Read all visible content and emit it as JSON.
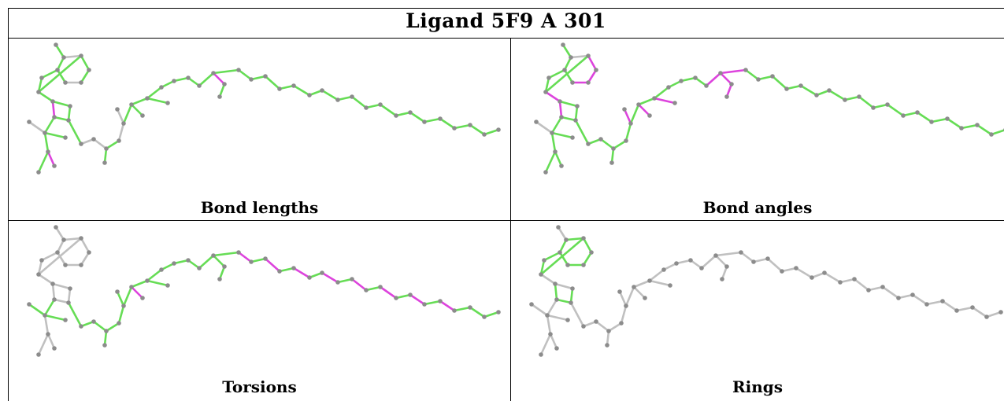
{
  "title": "Ligand 5F9 A 301",
  "colors": {
    "good": "#66dd55",
    "outlier": "#dd44dd",
    "neutral": "#c0c0c0",
    "atom": "#8c8c8c"
  },
  "panels": [
    {
      "caption": "Bond lengths",
      "default_color": "green",
      "offset": [
        0,
        0
      ],
      "overrides": [
        [
          14,
          16,
          "gray"
        ],
        [
          13,
          14,
          "gray"
        ],
        [
          19,
          20,
          "gray"
        ],
        [
          20,
          21,
          "gray"
        ],
        [
          20,
          23,
          "gray"
        ],
        [
          23,
          24,
          "gray"
        ],
        [
          24,
          25,
          "gray"
        ],
        [
          25,
          26,
          "gray"
        ],
        [
          1,
          2,
          "gray"
        ],
        [
          4,
          5,
          "gray"
        ],
        [
          9,
          10,
          "pink"
        ],
        [
          16,
          17,
          "pink"
        ],
        [
          34,
          35,
          "pink"
        ]
      ]
    },
    {
      "caption": "Bond angles",
      "default_color": "green",
      "offset": [
        6,
        0
      ],
      "overrides": [
        [
          3,
          4,
          "pink"
        ],
        [
          4,
          5,
          "pink"
        ],
        [
          2,
          3,
          "pink"
        ],
        [
          8,
          9,
          "pink"
        ],
        [
          9,
          10,
          "pink"
        ],
        [
          1,
          2,
          "gray"
        ],
        [
          12,
          13,
          "gray"
        ],
        [
          13,
          14,
          "gray"
        ],
        [
          14,
          16,
          "gray"
        ],
        [
          24,
          25,
          "pink"
        ],
        [
          26,
          27,
          "pink"
        ],
        [
          27,
          28,
          "pink"
        ],
        [
          28,
          30,
          "pink"
        ],
        [
          33,
          34,
          "pink"
        ],
        [
          34,
          35,
          "pink"
        ],
        [
          35,
          36,
          "pink"
        ],
        [
          34,
          37,
          "pink"
        ]
      ]
    },
    {
      "caption": "Torsions",
      "default_color": "green",
      "offset": [
        0,
        0
      ],
      "overrides": [
        [
          0,
          1,
          "gray"
        ],
        [
          1,
          2,
          "gray"
        ],
        [
          2,
          3,
          "gray"
        ],
        [
          3,
          4,
          "gray"
        ],
        [
          4,
          5,
          "gray"
        ],
        [
          5,
          6,
          "gray"
        ],
        [
          1,
          6,
          "gray"
        ],
        [
          6,
          7,
          "gray"
        ],
        [
          2,
          8,
          "gray"
        ],
        [
          7,
          8,
          "gray"
        ],
        [
          8,
          9,
          "gray"
        ],
        [
          9,
          10,
          "gray"
        ],
        [
          10,
          11,
          "gray"
        ],
        [
          11,
          12,
          "gray"
        ],
        [
          9,
          12,
          "gray"
        ],
        [
          11,
          13,
          "gray"
        ],
        [
          10,
          14,
          "gray"
        ],
        [
          14,
          15,
          "gray"
        ],
        [
          16,
          17,
          "gray"
        ],
        [
          13,
          16,
          "gray"
        ],
        [
          16,
          18,
          "gray"
        ],
        [
          23,
          24,
          "green"
        ],
        [
          26,
          27,
          "pink"
        ],
        [
          37,
          38,
          "pink"
        ],
        [
          39,
          40,
          "pink"
        ],
        [
          41,
          42,
          "pink"
        ],
        [
          43,
          44,
          "pink"
        ],
        [
          45,
          46,
          "pink"
        ],
        [
          47,
          48,
          "pink"
        ],
        [
          49,
          50,
          "pink"
        ],
        [
          51,
          52,
          "pink"
        ]
      ]
    },
    {
      "caption": "Rings",
      "default_color": "gray",
      "offset": [
        0,
        0
      ],
      "overrides": [
        [
          1,
          2,
          "green"
        ],
        [
          2,
          3,
          "green"
        ],
        [
          3,
          4,
          "green"
        ],
        [
          4,
          5,
          "green"
        ],
        [
          5,
          6,
          "green"
        ],
        [
          1,
          6,
          "green"
        ],
        [
          2,
          8,
          "green"
        ],
        [
          7,
          8,
          "green"
        ],
        [
          6,
          7,
          "green"
        ],
        [
          9,
          10,
          "green"
        ],
        [
          10,
          11,
          "green"
        ],
        [
          11,
          12,
          "green"
        ],
        [
          12,
          13,
          "green"
        ],
        [
          9,
          13,
          "green"
        ]
      ]
    }
  ]
}
